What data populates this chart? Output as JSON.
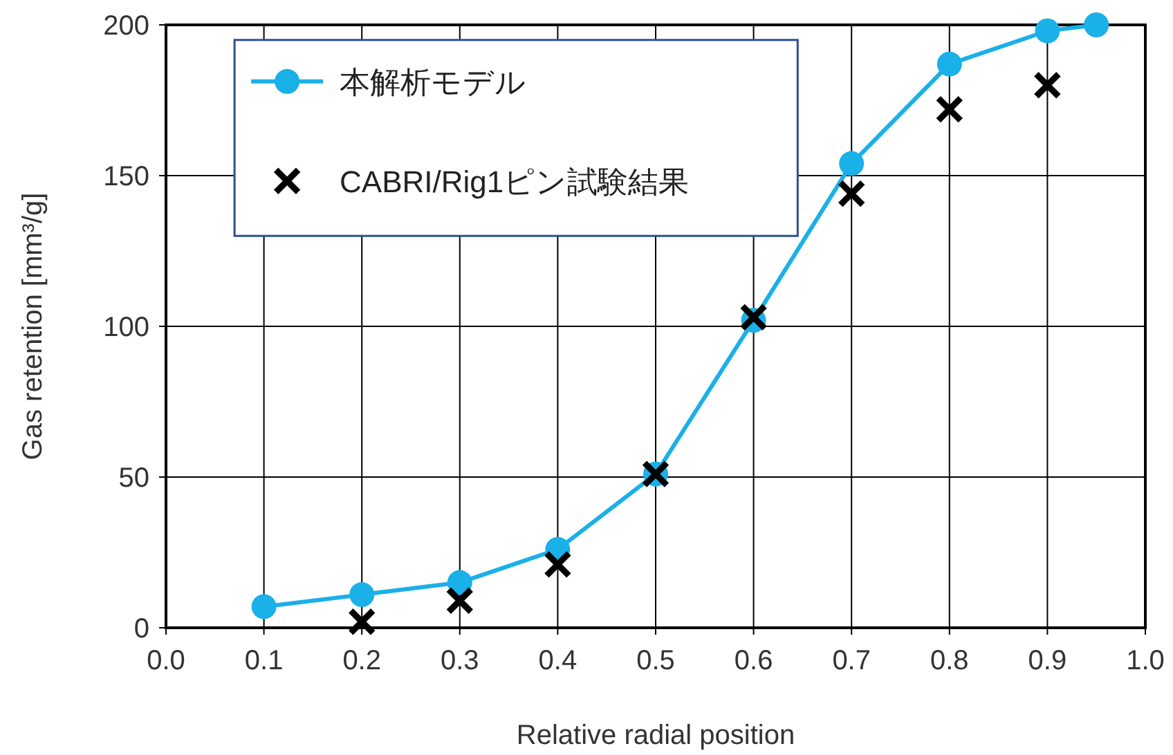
{
  "chart_data": {
    "type": "line",
    "xlabel": "Relative radial position",
    "ylabel": "Gas retention [mm³/g]",
    "xlim": [
      0,
      1
    ],
    "ylim": [
      0,
      200
    ],
    "xticks": [
      {
        "value": 0,
        "label": "0.0"
      },
      0.1,
      0.2,
      0.3,
      0.4,
      0.5,
      0.6,
      0.7,
      0.8,
      0.9,
      {
        "value": 1,
        "label": "1.0"
      }
    ],
    "yticks": [
      0,
      50,
      100,
      150,
      200
    ],
    "grid": true,
    "legend": "top left",
    "series": [
      {
        "name": "本解析モデル",
        "color": "#1ab0e8",
        "marker": "circle",
        "x": [
          0.1,
          0.2,
          0.3,
          0.4,
          0.5,
          0.6,
          0.7,
          0.8,
          0.9,
          0.95
        ],
        "values": [
          7,
          11,
          15,
          26,
          51,
          102,
          154,
          187,
          198,
          200
        ]
      },
      {
        "name": "CABRI/Rig1ピン試験結果",
        "type": "scatter",
        "color": "#000000",
        "marker": "cross",
        "x": [
          0.2,
          0.3,
          0.4,
          0.5,
          0.6,
          0.7,
          0.8,
          0.9
        ],
        "values": [
          2,
          9,
          21,
          51,
          103,
          144,
          172,
          180
        ]
      }
    ]
  }
}
